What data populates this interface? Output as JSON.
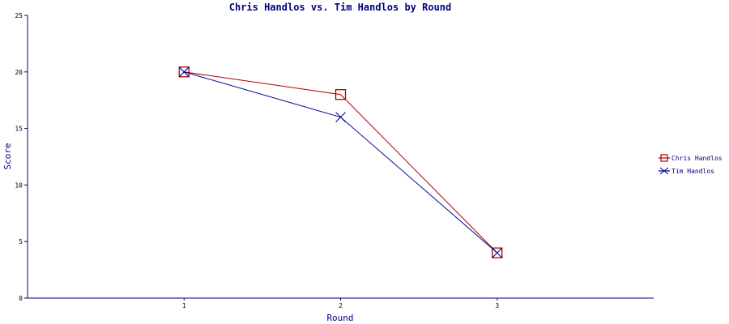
{
  "chart_data": {
    "type": "line",
    "title": "Chris Handlos vs. Tim Handlos by Round",
    "xlabel": "Round",
    "ylabel": "Score",
    "categories": [
      "1",
      "2",
      "3"
    ],
    "xlim": [
      0,
      4
    ],
    "ylim": [
      0,
      25
    ],
    "yticks": [
      "0",
      "5",
      "10",
      "15",
      "20",
      "25"
    ],
    "series": [
      {
        "name": "Chris Handlos",
        "values": [
          20,
          18,
          4
        ],
        "color": "#aa0000",
        "marker": "square"
      },
      {
        "name": "Tim Handlos",
        "values": [
          20,
          16,
          4
        ],
        "color": "#000099",
        "marker": "x"
      }
    ],
    "grid": false,
    "legend": "right"
  }
}
